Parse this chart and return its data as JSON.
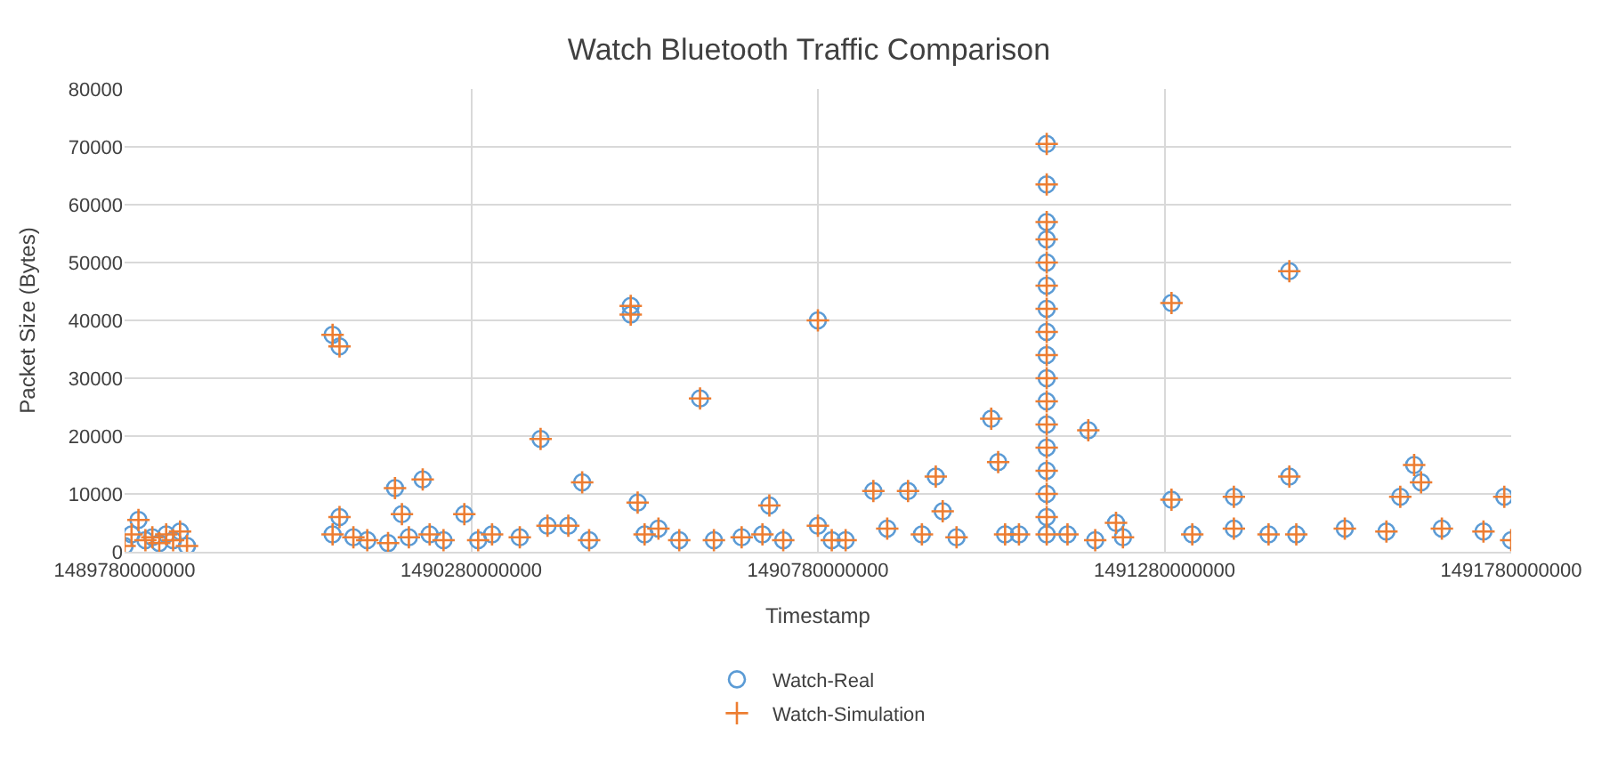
{
  "chart_data": {
    "type": "scatter",
    "title": "Watch Bluetooth Traffic Comparison",
    "xlabel": "Timestamp",
    "ylabel": "Packet Size (Bytes)",
    "x": [
      1489780000000.0,
      1489790000000.0,
      1489800000000.0,
      1489810000000.0,
      1489820000000.0,
      1489830000000.0,
      1489840000000.0,
      1489850000000.0,
      1489860000000.0,
      1489870000000.0,
      1490080000000.0,
      1490090000000.0,
      1490080000000.0,
      1490090000000.0,
      1490110000000.0,
      1490130000000.0,
      1490160000000.0,
      1490170000000.0,
      1490180000000.0,
      1490190000000.0,
      1490210000000.0,
      1490220000000.0,
      1490240000000.0,
      1490270000000.0,
      1490290000000.0,
      1490310000000.0,
      1490350000000.0,
      1490380000000.0,
      1490390000000.0,
      1490420000000.0,
      1490440000000.0,
      1490450000000.0,
      1490510000000.0,
      1490510000000.0,
      1490520000000.0,
      1490530000000.0,
      1490550000000.0,
      1490580000000.0,
      1490610000000.0,
      1490630000000.0,
      1490670000000.0,
      1490700000000.0,
      1490710000000.0,
      1490730000000.0,
      1490780000000.0,
      1490780000000.0,
      1490800000000.0,
      1490820000000.0,
      1490860000000.0,
      1490880000000.0,
      1490910000000.0,
      1490930000000.0,
      1490950000000.0,
      1490960000000.0,
      1490980000000.0,
      1491030000000.0,
      1491050000000.0,
      1491040000000.0,
      1491070000000.0,
      1491110000000.0,
      1491110000000.0,
      1491110000000.0,
      1491110000000.0,
      1491110000000.0,
      1491110000000.0,
      1491110000000.0,
      1491110000000.0,
      1491110000000.0,
      1491110000000.0,
      1491110000000.0,
      1491110000000.0,
      1491110000000.0,
      1491110000000.0,
      1491110000000.0,
      1491110000000.0,
      1491110000000.0,
      1491140000000.0,
      1491170000000.0,
      1491180000000.0,
      1491210000000.0,
      1491220000000.0,
      1491290000000.0,
      1491290000000.0,
      1491320000000.0,
      1491380000000.0,
      1491380000000.0,
      1491430000000.0,
      1491460000000.0,
      1491460000000.0,
      1491470000000.0,
      1491540000000.0,
      1491600000000.0,
      1491620000000.0,
      1491640000000.0,
      1491650000000.0,
      1491680000000.0,
      1491740000000.0,
      1491770000000.0,
      1491780000000.0
    ],
    "series": [
      {
        "name": "Watch-Real",
        "color": "#5b9bd5",
        "marker": "circle",
        "values": [
          1000,
          3000,
          5500,
          2000,
          2500,
          1500,
          3000,
          2000,
          3500,
          1000,
          37500,
          35500,
          3000,
          6000,
          2500,
          2000,
          1500,
          11000,
          6500,
          2500,
          12500,
          3000,
          2000,
          6500,
          2000,
          3000,
          2500,
          19500,
          4500,
          4500,
          12000,
          2000,
          42500,
          41000,
          8500,
          3000,
          4000,
          2000,
          26500,
          2000,
          2500,
          3000,
          8000,
          2000,
          40000,
          4500,
          2000,
          2000,
          10500,
          4000,
          10500,
          3000,
          13000,
          7000,
          2500,
          23000,
          3000,
          15500,
          3000,
          70500,
          63500,
          57000,
          54000,
          50000,
          46000,
          42000,
          38000,
          34000,
          30000,
          26000,
          22000,
          18000,
          14000,
          10000,
          6000,
          3000,
          3000,
          21000,
          2000,
          5000,
          2500,
          43000,
          9000,
          3000,
          4000,
          9500,
          3000,
          48500,
          13000,
          3000,
          4000,
          3500,
          9500,
          15000,
          12000,
          4000,
          3500,
          9500,
          2000
        ]
      },
      {
        "name": "Watch-Simulation",
        "color": "#ed7d31",
        "marker": "cross",
        "values": [
          1000,
          3000,
          5500,
          2000,
          2500,
          1500,
          3000,
          2000,
          3500,
          1000,
          37500,
          35500,
          3000,
          6000,
          2500,
          2000,
          1500,
          11000,
          6500,
          2500,
          12500,
          3000,
          2000,
          6500,
          2000,
          3000,
          2500,
          19500,
          4500,
          4500,
          12000,
          2000,
          42500,
          41000,
          8500,
          3000,
          4000,
          2000,
          26500,
          2000,
          2500,
          3000,
          8000,
          2000,
          40000,
          4500,
          2000,
          2000,
          10500,
          4000,
          10500,
          3000,
          13000,
          7000,
          2500,
          23000,
          3000,
          15500,
          3000,
          70500,
          63500,
          57000,
          54000,
          50000,
          46000,
          42000,
          38000,
          34000,
          30000,
          26000,
          22000,
          18000,
          14000,
          10000,
          6000,
          3000,
          3000,
          21000,
          2000,
          5000,
          2500,
          43000,
          9000,
          3000,
          4000,
          9500,
          3000,
          48500,
          13000,
          3000,
          4000,
          3500,
          9500,
          15000,
          12000,
          4000,
          3500,
          9500,
          2000
        ]
      }
    ],
    "xlim": [
      1489780000000,
      1491780000000
    ],
    "xticks": [
      {
        "value": 1489780000000,
        "label": "1489780000000"
      },
      {
        "value": 1490280000000,
        "label": "1490280000000"
      },
      {
        "value": 1490780000000,
        "label": "1490780000000"
      },
      {
        "value": 1491280000000,
        "label": "1491280000000"
      },
      {
        "value": 1491780000000,
        "label": "1491780000000"
      }
    ],
    "ylim": [
      0,
      80000
    ],
    "yticks": [
      0,
      10000,
      20000,
      30000,
      40000,
      50000,
      60000,
      70000,
      80000
    ],
    "grid": true,
    "legend": "bottom"
  }
}
